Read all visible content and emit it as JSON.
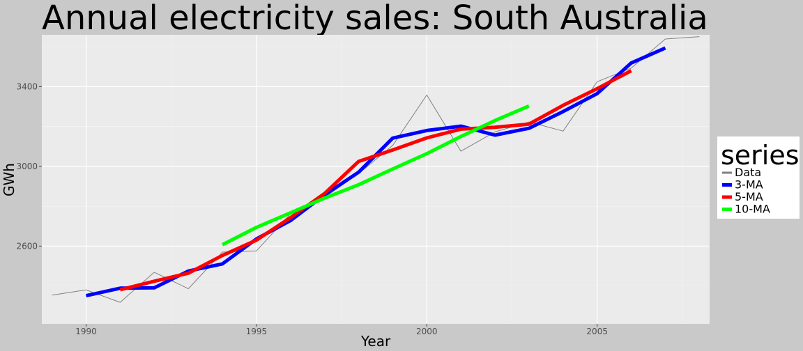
{
  "chart_data": {
    "type": "line",
    "title": "Annual electricity sales: South Australia",
    "xlabel": "Year",
    "ylabel": "GWh",
    "xlim": [
      1988.7,
      2008.3
    ],
    "ylim": [
      2210,
      3660
    ],
    "x_ticks": [
      1990,
      1995,
      2000,
      2005
    ],
    "y_ticks": [
      2600,
      3000,
      3400
    ],
    "grid": true,
    "legend": {
      "title": "series",
      "position": "right"
    },
    "series": [
      {
        "name": "Data",
        "color": "#808080",
        "x": [
          1989,
          1990,
          1991,
          1992,
          1993,
          1994,
          1995,
          1996,
          1997,
          1998,
          1999,
          2000,
          2001,
          2002,
          2003,
          2004,
          2005,
          2006,
          2007,
          2008
        ],
        "y": [
          2354,
          2380,
          2318,
          2469,
          2386,
          2570,
          2576,
          2762,
          2845,
          2964,
          3105,
          3358,
          3076,
          3173,
          3223,
          3177,
          3425,
          3493,
          3639,
          3651
        ]
      },
      {
        "name": "3-MA",
        "color": "#0000ff",
        "x": [
          1990,
          1991,
          1992,
          1993,
          1994,
          1995,
          1996,
          1997,
          1998,
          1999,
          2000,
          2001,
          2002,
          2003,
          2004,
          2005,
          2006,
          2007
        ],
        "y": [
          2351,
          2389,
          2391,
          2475,
          2511,
          2636,
          2728,
          2857,
          2971,
          3142,
          3180,
          3202,
          3157,
          3191,
          3275,
          3365,
          3519,
          3594
        ]
      },
      {
        "name": "5-MA",
        "color": "#ff0000",
        "x": [
          1991,
          1992,
          1993,
          1994,
          1995,
          1996,
          1997,
          1998,
          1999,
          2000,
          2001,
          2002,
          2003,
          2004,
          2005,
          2006
        ],
        "y": [
          2381,
          2424,
          2464,
          2553,
          2630,
          2743,
          2864,
          3025,
          3082,
          3143,
          3187,
          3196,
          3212,
          3306,
          3390,
          3480
        ]
      },
      {
        "name": "10-MA",
        "color": "#00ff00",
        "x": [
          1994,
          1995,
          1996,
          1997,
          1998,
          1999,
          2000,
          2001,
          2002,
          2003
        ],
        "y": [
          2607,
          2694,
          2767,
          2841,
          2908,
          2987,
          3064,
          3150,
          3230,
          3303
        ]
      }
    ]
  }
}
